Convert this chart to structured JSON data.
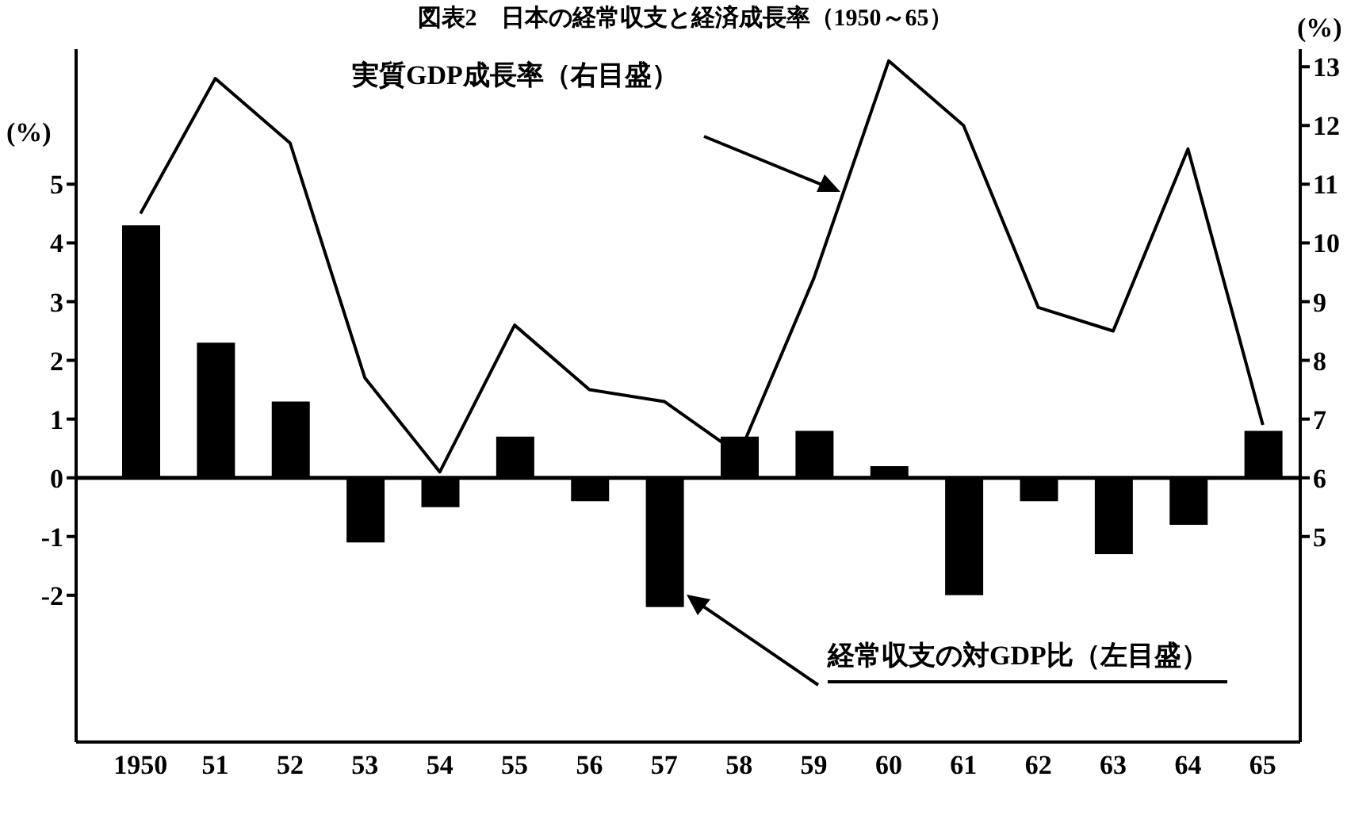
{
  "chart_data": {
    "type": "bar",
    "title": "図表2　日本の経常収支と経済成長率（1950～65）",
    "ylabel": "(%)",
    "y2label": "(%)",
    "categories": [
      "1950",
      "51",
      "52",
      "53",
      "54",
      "55",
      "56",
      "57",
      "58",
      "59",
      "60",
      "61",
      "62",
      "63",
      "64",
      "65"
    ],
    "series": [
      {
        "color": "#000000",
        "values": [
          4.3,
          2.3,
          1.3,
          -1.1,
          -0.5,
          0.7,
          -0.4,
          -2.2,
          0.7,
          0.8,
          0.2,
          -2.0,
          -0.4,
          -1.3,
          -0.8,
          0.8
        ]
      },
      {
        "type": "line",
        "axis": "y2",
        "color": "#000000",
        "values": [
          10.5,
          12.8,
          11.7,
          7.7,
          6.1,
          8.6,
          7.5,
          7.3,
          6.4,
          9.4,
          13.1,
          12.0,
          8.9,
          8.5,
          11.6,
          6.9
        ]
      }
    ],
    "ylim": [
      -4.5,
      7.3
    ],
    "yticks": [
      -2,
      -1,
      0,
      1,
      2,
      3,
      4,
      5
    ],
    "y2lim": [
      1.5,
      13.3
    ],
    "y2ticks": [
      5,
      6,
      7,
      8,
      9,
      10,
      11,
      12,
      13
    ],
    "ref_lines": [
      {
        "axis": "y",
        "value": 0
      }
    ],
    "annotations": [
      "実質GDP成長率（右目盛）",
      "経常収支の対GDP比（左目盛）"
    ],
    "grid": false,
    "legend": false,
    "marker": "none",
    "line_style": "solid"
  }
}
